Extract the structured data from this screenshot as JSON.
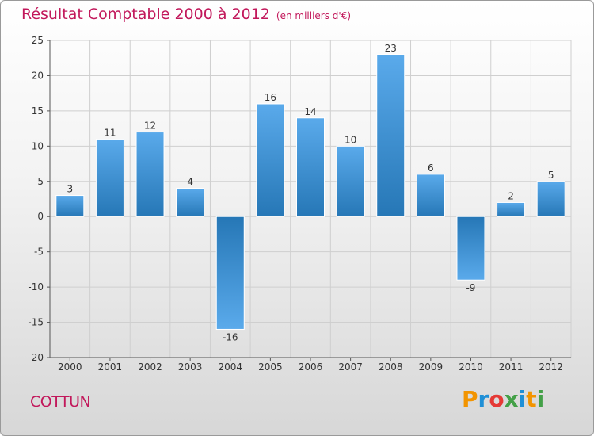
{
  "title": "Résultat Comptable 2000 à 2012",
  "subtitle": "(en milliers d'€)",
  "location": "COTTUN",
  "brand": {
    "letters": [
      "P",
      "r",
      "o",
      "x",
      "i",
      "t",
      "i"
    ],
    "colors": [
      "#f29400",
      "#1f8fd6",
      "#e53935",
      "#43a047",
      "#1f8fd6",
      "#f29400",
      "#43a047"
    ]
  },
  "colors": {
    "bar_light": "#5aaaeb",
    "bar_dark": "#2677b6",
    "grid": "#cfcfcf",
    "axis": "#555555",
    "text": "#333333"
  },
  "chart_data": {
    "type": "bar",
    "title": "Résultat Comptable 2000 à 2012",
    "xlabel": "",
    "ylabel": "",
    "categories": [
      "2000",
      "2001",
      "2002",
      "2003",
      "2004",
      "2005",
      "2006",
      "2007",
      "2008",
      "2009",
      "2010",
      "2011",
      "2012"
    ],
    "values": [
      3,
      11,
      12,
      4,
      -16,
      16,
      14,
      10,
      23,
      6,
      -9,
      2,
      5
    ],
    "ylim": [
      -20,
      25
    ],
    "yticks": [
      25,
      20,
      15,
      10,
      5,
      0,
      -5,
      -10,
      -15,
      -20
    ],
    "grid": true,
    "data_labels": true
  }
}
